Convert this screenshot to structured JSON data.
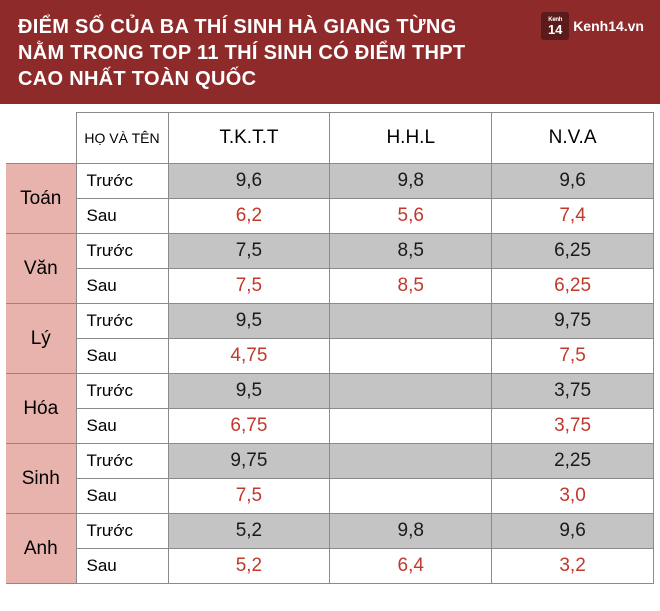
{
  "header": {
    "title": "ĐIỂM SỐ CỦA BA THÍ SINH HÀ GIANG TỪNG NẰM TRONG TOP 11 THÍ SINH CÓ ĐIỂM THPT CAO NHẤT TOÀN QUỐC",
    "logo_small": "Kenh",
    "logo_num": "14",
    "logo_text": "Kenh14.vn"
  },
  "table": {
    "name_col": "HỌ\nVÀ TÊN",
    "students": [
      "T.K.T.T",
      "H.H.L",
      "N.V.A"
    ],
    "row_labels": {
      "before": "Trước",
      "after": "Sau"
    },
    "subjects": [
      {
        "name": "Toán",
        "before": [
          "9,6",
          "9,8",
          "9,6"
        ],
        "after": [
          "6,2",
          "5,6",
          "7,4"
        ]
      },
      {
        "name": "Văn",
        "before": [
          "7,5",
          "8,5",
          "6,25"
        ],
        "after": [
          "7,5",
          "8,5",
          "6,25"
        ]
      },
      {
        "name": "Lý",
        "before": [
          "9,5",
          "",
          "9,75"
        ],
        "after": [
          "4,75",
          "",
          "7,5"
        ]
      },
      {
        "name": "Hóa",
        "before": [
          "9,5",
          "",
          "3,75"
        ],
        "after": [
          "6,75",
          "",
          "3,75"
        ]
      },
      {
        "name": "Sinh",
        "before": [
          "9,75",
          "",
          "2,25"
        ],
        "after": [
          "7,5",
          "",
          "3,0"
        ]
      },
      {
        "name": "Anh",
        "before": [
          "5,2",
          "9,8",
          "9,6"
        ],
        "after": [
          "5,2",
          "6,4",
          "3,2"
        ]
      }
    ]
  },
  "style": {
    "header_bg": "#8e2a2a",
    "subject_bg": "#e7b3ac",
    "before_bg": "#c4c4c4",
    "after_color": "#c0392b",
    "border_color": "#8a8a8a"
  }
}
